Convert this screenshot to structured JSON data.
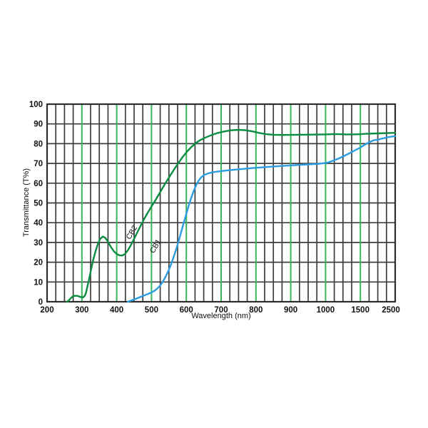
{
  "chart_data": {
    "type": "line",
    "title": "",
    "xlabel": "Wavelength (nm)",
    "ylabel": "Transmittance (T%)",
    "x_scale": "piecewise-linear segments: 200-1000 step 100, 1000-1500, 1500-2500, each segment equal width",
    "x_tick_values": [
      200,
      300,
      400,
      500,
      600,
      700,
      800,
      900,
      1000,
      1500,
      2500
    ],
    "x_tick_labels": [
      "200",
      "300",
      "400",
      "500",
      "600",
      "700",
      "800",
      "900",
      "1000",
      "1500",
      "2500"
    ],
    "y_tick_values": [
      0,
      10,
      20,
      30,
      40,
      50,
      60,
      70,
      80,
      90,
      100
    ],
    "ylim": [
      0,
      100
    ],
    "xlim": [
      200,
      2500
    ],
    "minor_x_divisions_per_segment": 4,
    "grid": "on",
    "green_gridline_values": [
      300,
      400,
      500,
      600,
      700,
      800,
      900,
      1000,
      1500
    ],
    "colors": {
      "grid": "#3d3d3d",
      "green_grid": "#3cb45a",
      "border": "#2e2e2e",
      "series_cb2": "#0a8c42",
      "series_cb1": "#2b9de0",
      "text": "#111111",
      "background": "#ffffff"
    },
    "legend_position": "none",
    "annotations": [
      {
        "text": "CB2",
        "x_nm": 449,
        "t_pct": 34.5,
        "rotate": -60
      },
      {
        "text": "CB1",
        "x_nm": 517,
        "t_pct": 27.5,
        "rotate": -60
      }
    ],
    "series": [
      {
        "name": "CB2",
        "color": "#0a8c42",
        "points": [
          [
            258,
            0
          ],
          [
            263,
            0.8
          ],
          [
            268,
            1.8
          ],
          [
            274,
            2.7
          ],
          [
            280,
            3
          ],
          [
            287,
            3
          ],
          [
            293,
            2.6
          ],
          [
            298,
            2.3
          ],
          [
            303,
            2.2
          ],
          [
            307,
            2.7
          ],
          [
            311,
            4
          ],
          [
            315,
            7
          ],
          [
            320,
            11
          ],
          [
            326,
            16
          ],
          [
            333,
            21.5
          ],
          [
            340,
            26
          ],
          [
            347,
            29.8
          ],
          [
            353,
            31.9
          ],
          [
            360,
            33
          ],
          [
            367,
            32.4
          ],
          [
            375,
            30.4
          ],
          [
            383,
            27.8
          ],
          [
            392,
            25.5
          ],
          [
            400,
            24.2
          ],
          [
            408,
            23.5
          ],
          [
            416,
            23.4
          ],
          [
            424,
            24.2
          ],
          [
            432,
            26
          ],
          [
            440,
            28.4
          ],
          [
            450,
            31.8
          ],
          [
            460,
            35.4
          ],
          [
            470,
            38.9
          ],
          [
            480,
            42.2
          ],
          [
            490,
            45.3
          ],
          [
            500,
            48.2
          ],
          [
            510,
            51
          ],
          [
            520,
            54
          ],
          [
            530,
            57
          ],
          [
            540,
            60
          ],
          [
            552,
            63.4
          ],
          [
            565,
            67
          ],
          [
            578,
            70.4
          ],
          [
            590,
            73.4
          ],
          [
            602,
            76
          ],
          [
            615,
            78.4
          ],
          [
            628,
            80.4
          ],
          [
            640,
            81.8
          ],
          [
            655,
            83.1
          ],
          [
            670,
            84.2
          ],
          [
            690,
            85.4
          ],
          [
            710,
            86.2
          ],
          [
            730,
            86.8
          ],
          [
            750,
            87
          ],
          [
            770,
            86.8
          ],
          [
            790,
            86.2
          ],
          [
            810,
            85.4
          ],
          [
            830,
            84.8
          ],
          [
            850,
            84.5
          ],
          [
            880,
            84.4
          ],
          [
            920,
            84.5
          ],
          [
            960,
            84.6
          ],
          [
            1000,
            84.7
          ],
          [
            1100,
            84.8
          ],
          [
            1200,
            84.8
          ],
          [
            1300,
            84.7
          ],
          [
            1400,
            84.7
          ],
          [
            1500,
            84.8
          ],
          [
            1650,
            85
          ],
          [
            1800,
            85.1
          ],
          [
            2000,
            85.2
          ],
          [
            2200,
            85.3
          ],
          [
            2350,
            85.4
          ],
          [
            2500,
            85.5
          ]
        ]
      },
      {
        "name": "CB1",
        "color": "#2b9de0",
        "points": [
          [
            432,
            0
          ],
          [
            442,
            0.6
          ],
          [
            452,
            1.3
          ],
          [
            462,
            2
          ],
          [
            472,
            2.7
          ],
          [
            482,
            3.4
          ],
          [
            492,
            4.1
          ],
          [
            500,
            4.7
          ],
          [
            508,
            5.5
          ],
          [
            516,
            6.6
          ],
          [
            524,
            8
          ],
          [
            532,
            10
          ],
          [
            540,
            12.5
          ],
          [
            548,
            15.4
          ],
          [
            556,
            18.8
          ],
          [
            564,
            22.8
          ],
          [
            572,
            27.2
          ],
          [
            580,
            32
          ],
          [
            588,
            37
          ],
          [
            596,
            42
          ],
          [
            604,
            47
          ],
          [
            612,
            51.6
          ],
          [
            620,
            55.6
          ],
          [
            628,
            58.9
          ],
          [
            636,
            61.5
          ],
          [
            644,
            63.2
          ],
          [
            652,
            64.2
          ],
          [
            662,
            64.9
          ],
          [
            675,
            65.5
          ],
          [
            690,
            65.9
          ],
          [
            710,
            66.3
          ],
          [
            735,
            66.8
          ],
          [
            760,
            67.2
          ],
          [
            800,
            67.8
          ],
          [
            840,
            68.3
          ],
          [
            880,
            68.8
          ],
          [
            930,
            69.3
          ],
          [
            980,
            69.8
          ],
          [
            1030,
            70.4
          ],
          [
            1100,
            71.3
          ],
          [
            1180,
            72.4
          ],
          [
            1260,
            73.7
          ],
          [
            1340,
            75.1
          ],
          [
            1420,
            76.6
          ],
          [
            1500,
            78
          ],
          [
            1600,
            79.2
          ],
          [
            1700,
            80.2
          ],
          [
            1800,
            81.1
          ],
          [
            1900,
            81.8
          ],
          [
            2000,
            82
          ],
          [
            2100,
            82.5
          ],
          [
            2200,
            82.9
          ],
          [
            2300,
            83.3
          ],
          [
            2400,
            83.6
          ],
          [
            2500,
            83.8
          ]
        ]
      }
    ]
  }
}
